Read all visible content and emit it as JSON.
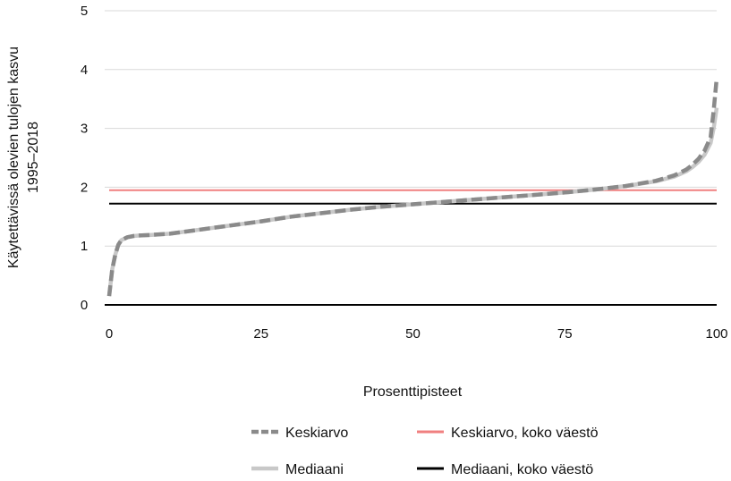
{
  "chart_data": {
    "type": "line",
    "xlabel": "Prosenttipisteet",
    "ylabel_lines": [
      "Käytettävissä olevien tulojen kasvu",
      "1995–2018"
    ],
    "xlim": [
      0,
      100
    ],
    "ylim": [
      0,
      5
    ],
    "x_ticks": [
      0,
      25,
      50,
      75,
      100
    ],
    "y_ticks": [
      0,
      1,
      2,
      3,
      4,
      5
    ],
    "grid": true,
    "legend_position": "bottom",
    "series": [
      {
        "name": "Keskiarvo",
        "style": "dashed",
        "color": "#8a8a8a",
        "x": [
          0,
          0.5,
          1,
          1.5,
          2,
          3,
          4,
          5,
          7,
          10,
          15,
          20,
          25,
          30,
          35,
          40,
          45,
          50,
          55,
          60,
          65,
          70,
          75,
          80,
          85,
          90,
          93,
          95,
          96,
          97,
          98,
          99,
          99.5,
          100
        ],
        "y": [
          0.15,
          0.6,
          0.85,
          1.02,
          1.1,
          1.15,
          1.17,
          1.18,
          1.19,
          1.21,
          1.28,
          1.35,
          1.42,
          1.5,
          1.56,
          1.62,
          1.67,
          1.71,
          1.75,
          1.79,
          1.83,
          1.87,
          1.91,
          1.96,
          2.02,
          2.11,
          2.2,
          2.3,
          2.38,
          2.48,
          2.62,
          2.85,
          3.3,
          3.85
        ]
      },
      {
        "name": "Mediaani",
        "style": "solid",
        "color": "#c8c8c8",
        "x": [
          0,
          0.5,
          1,
          1.5,
          2,
          3,
          4,
          5,
          7,
          10,
          15,
          20,
          25,
          30,
          35,
          40,
          45,
          50,
          55,
          60,
          65,
          70,
          75,
          80,
          85,
          90,
          93,
          95,
          96,
          97,
          98,
          99,
          99.5,
          100
        ],
        "y": [
          0.15,
          0.6,
          0.85,
          1.02,
          1.1,
          1.15,
          1.17,
          1.18,
          1.19,
          1.21,
          1.28,
          1.35,
          1.42,
          1.5,
          1.56,
          1.62,
          1.67,
          1.71,
          1.75,
          1.79,
          1.83,
          1.87,
          1.91,
          1.96,
          2.02,
          2.1,
          2.18,
          2.27,
          2.34,
          2.43,
          2.55,
          2.75,
          3.0,
          3.35
        ]
      },
      {
        "name": "Keskiarvo, koko väestö",
        "style": "solid",
        "color": "#f08080",
        "x": [
          0,
          100
        ],
        "y": [
          1.95,
          1.95
        ]
      },
      {
        "name": "Mediaani, koko väestö",
        "style": "solid",
        "color": "#000000",
        "x": [
          0,
          100
        ],
        "y": [
          1.72,
          1.72
        ]
      }
    ]
  }
}
